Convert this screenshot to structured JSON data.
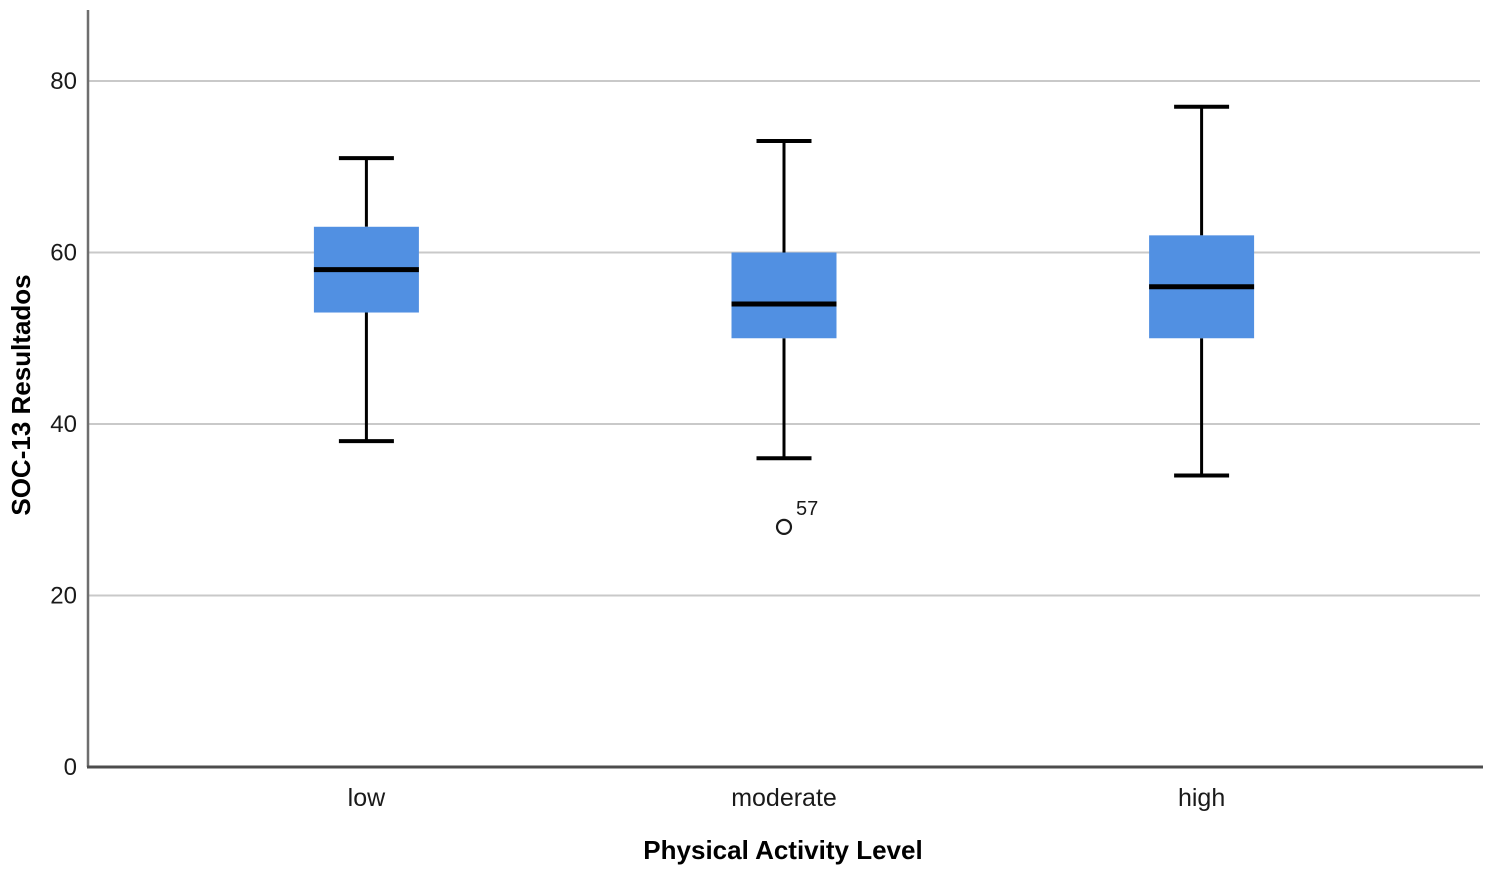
{
  "chart_data": {
    "type": "boxplot",
    "title": "",
    "xlabel": "Physical Activity Level",
    "ylabel": "SOC-13 Resultados",
    "categories": [
      "low",
      "moderate",
      "high"
    ],
    "y_ticks": [
      0,
      20,
      40,
      60,
      80
    ],
    "ylim": [
      0,
      88
    ],
    "grid": "horizontal",
    "legend": "none",
    "series": [
      {
        "category": "low",
        "whisker_low": 38,
        "q1": 53,
        "median": 58,
        "q3": 63,
        "whisker_high": 71,
        "outliers": []
      },
      {
        "category": "moderate",
        "whisker_low": 36,
        "q1": 50,
        "median": 54,
        "q3": 60,
        "whisker_high": 73,
        "outliers": [
          {
            "value": 28,
            "case_label": "57"
          }
        ]
      },
      {
        "category": "high",
        "whisker_low": 34,
        "q1": 50,
        "median": 56,
        "q3": 62,
        "whisker_high": 77,
        "outliers": []
      }
    ],
    "colors": {
      "box_fill": "#5190e2",
      "box_line": "#000000",
      "median_line": "#000000",
      "gridline": "#c9c9c9",
      "y_axis_line": "#6e6e6e",
      "x_axis_line": "#4d4d4d",
      "tick_text": "#1a1a1a",
      "outlier_stroke": "#1a1a1a",
      "background": "#ffffff"
    }
  }
}
